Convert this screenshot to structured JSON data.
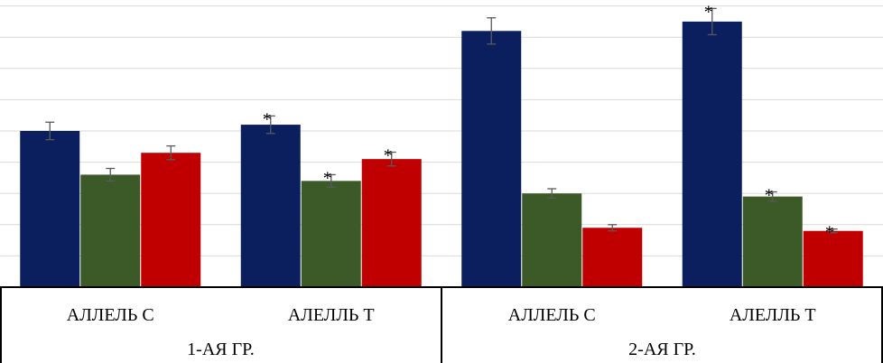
{
  "chart_data": {
    "type": "bar",
    "title": "",
    "xlabel": "",
    "ylabel": "",
    "ylim": [
      0,
      9
    ],
    "grid": true,
    "legend": "none",
    "groups": [
      {
        "label": "1-АЯ ГР.",
        "categories": [
          "АЛЛЕЛЬ С",
          "АЛЕЛЛЬ Т"
        ]
      },
      {
        "label": "2-АЯ ГР.",
        "categories": [
          "АЛЛЕЛЬ С",
          "АЛЕЛЛЬ Т"
        ]
      }
    ],
    "categories": [
      "АЛЛЕЛЬ С",
      "АЛЕЛЛЬ Т",
      "АЛЛЕЛЬ С",
      "АЛЕЛЛЬ Т"
    ],
    "series": [
      {
        "color": "#0b1f5e",
        "values": [
          5.0,
          5.2,
          8.2,
          8.5
        ],
        "errors": [
          0.28,
          0.28,
          0.42,
          0.42
        ],
        "significant": [
          false,
          true,
          false,
          true
        ]
      },
      {
        "color": "#3b5a27",
        "values": [
          3.6,
          3.4,
          3.0,
          2.9
        ],
        "errors": [
          0.2,
          0.2,
          0.15,
          0.15
        ],
        "significant": [
          false,
          true,
          false,
          true
        ]
      },
      {
        "color": "#c00000",
        "values": [
          4.3,
          4.1,
          1.9,
          1.8
        ],
        "errors": [
          0.22,
          0.22,
          0.1,
          0.06
        ],
        "significant": [
          false,
          true,
          false,
          true
        ]
      }
    ],
    "significance_marker": "*"
  }
}
